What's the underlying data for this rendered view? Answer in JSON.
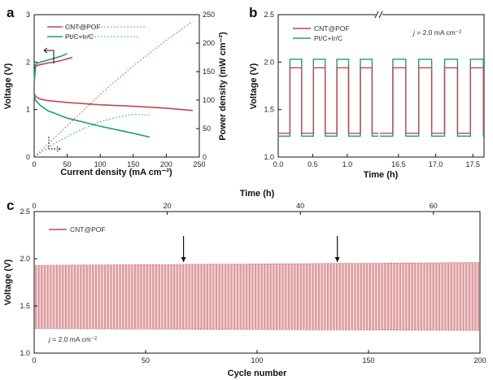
{
  "colors": {
    "red": "#c0474d",
    "teal": "#1f9a86",
    "axis": "#111111"
  },
  "chart_data": [
    {
      "panel": "a",
      "type": "line",
      "xlabel": "Current density (mA cm⁻²)",
      "ylabel": "Voltage (V)",
      "y2label": "Power density (mW cm⁻²)",
      "xlim": [
        0,
        250
      ],
      "ylim": [
        0,
        3
      ],
      "y2lim": [
        0,
        250
      ],
      "xticks": [
        "0",
        "50",
        "100",
        "150",
        "200",
        "250"
      ],
      "yticks": [
        "0",
        "1",
        "2",
        "3"
      ],
      "y2ticks": [
        "0",
        "50",
        "100",
        "150",
        "200",
        "250"
      ],
      "series": [
        {
          "name": "CNT@POF",
          "kind": "polarization-charge",
          "axis": "y",
          "x": [
            0,
            2,
            5,
            10,
            20,
            30,
            40,
            50,
            58
          ],
          "y": [
            1.55,
            1.9,
            1.93,
            1.95,
            1.98,
            2.0,
            2.03,
            2.07,
            2.1
          ]
        },
        {
          "name": "Pt/C+Ir/C",
          "kind": "polarization-charge",
          "axis": "y",
          "x": [
            0,
            2,
            5,
            10,
            20,
            30,
            40,
            50
          ],
          "y": [
            1.6,
            1.95,
            1.98,
            2.0,
            2.04,
            2.08,
            2.12,
            2.18
          ]
        },
        {
          "name": "CNT@POF",
          "kind": "polarization-discharge",
          "axis": "y",
          "x": [
            0,
            2,
            5,
            10,
            20,
            50,
            100,
            150,
            200,
            240
          ],
          "y": [
            1.35,
            1.28,
            1.25,
            1.22,
            1.19,
            1.15,
            1.1,
            1.07,
            1.03,
            0.98
          ]
        },
        {
          "name": "Pt/C+Ir/C",
          "kind": "polarization-discharge",
          "axis": "y",
          "x": [
            0,
            2,
            5,
            10,
            20,
            50,
            100,
            150,
            175
          ],
          "y": [
            1.3,
            1.2,
            1.15,
            1.08,
            0.98,
            0.82,
            0.65,
            0.5,
            0.42
          ]
        },
        {
          "name": "CNT@POF",
          "kind": "power",
          "axis": "y2",
          "x": [
            0,
            50,
            100,
            150,
            200,
            240
          ],
          "y": [
            0,
            55,
            110,
            160,
            205,
            238
          ]
        },
        {
          "name": "Pt/C+Ir/C",
          "kind": "power",
          "axis": "y2",
          "x": [
            0,
            25,
            50,
            75,
            100,
            125,
            150,
            175
          ],
          "y": [
            0,
            20,
            36,
            50,
            62,
            70,
            75,
            74
          ]
        }
      ],
      "legend": [
        "CNT@POF",
        "Pt/C+Ir/C"
      ]
    },
    {
      "panel": "b",
      "type": "line",
      "xlabel": "Time (h)",
      "ylabel": "Voltage (V)",
      "ylim": [
        1.0,
        2.5
      ],
      "yticks": [
        "1.0",
        "1.5",
        "2.0",
        "2.5"
      ],
      "xticks": [
        "0.0",
        "0.5",
        "1.0",
        "16.5",
        "17.0",
        "17.5"
      ],
      "xlim_segment_1": [
        0.0,
        1.45
      ],
      "xlim_segment_2": [
        16.25,
        17.65
      ],
      "charge_voltage": {
        "CNT@POF": 1.94,
        "Pt/C+Ir/C": 2.03
      },
      "discharge_voltage": {
        "CNT@POF": 1.25,
        "Pt/C+Ir/C": 1.22
      },
      "cycle_period_h": 0.333,
      "annotation": "j = 2.0 mA cm⁻²",
      "legend": [
        "CNT@POF",
        "Pt/C+Ir/C"
      ]
    },
    {
      "panel": "c",
      "type": "line",
      "xlabel": "Cycle number",
      "ylabel": "Voltage (V)",
      "top_xlabel": "Time (h)",
      "xlim": [
        0,
        200
      ],
      "ylim": [
        1.0,
        2.5
      ],
      "top_xlim": [
        0,
        67
      ],
      "xticks": [
        "0",
        "50",
        "100",
        "150",
        "200"
      ],
      "top_xticks": [
        "0",
        "20",
        "40",
        "60"
      ],
      "yticks": [
        "1.0",
        "1.5",
        "2.0",
        "2.5"
      ],
      "series": [
        {
          "name": "CNT@POF",
          "cycles": 200,
          "charge_voltage_start": 1.93,
          "charge_voltage_end": 1.96,
          "discharge_voltage_start": 1.26,
          "discharge_voltage_end": 1.24
        }
      ],
      "arrows_at_cycle": [
        67,
        136
      ],
      "annotation": "j = 2.0 mA cm⁻²",
      "legend": [
        "CNT@POF"
      ]
    }
  ],
  "panel_labels": {
    "a": "a",
    "b": "b",
    "c": "c"
  },
  "text": {
    "a_xlabel": "Current density (mA cm⁻²)",
    "a_ylabel": "Voltage (V)",
    "a_y2label": "Power density (mW cm⁻²)",
    "b_xlabel": "Time (h)",
    "b_ylabel": "Voltage (V)",
    "c_top_xlabel": "Time (h)",
    "c_xlabel": "Cycle number",
    "c_ylabel": "Voltage (V)",
    "legend_1": "CNT@POF",
    "legend_2": "Pt/C+Ir/C",
    "annotation_j_prefix": "j",
    "annotation_j_rest": " = 2.0 mA cm⁻²"
  }
}
